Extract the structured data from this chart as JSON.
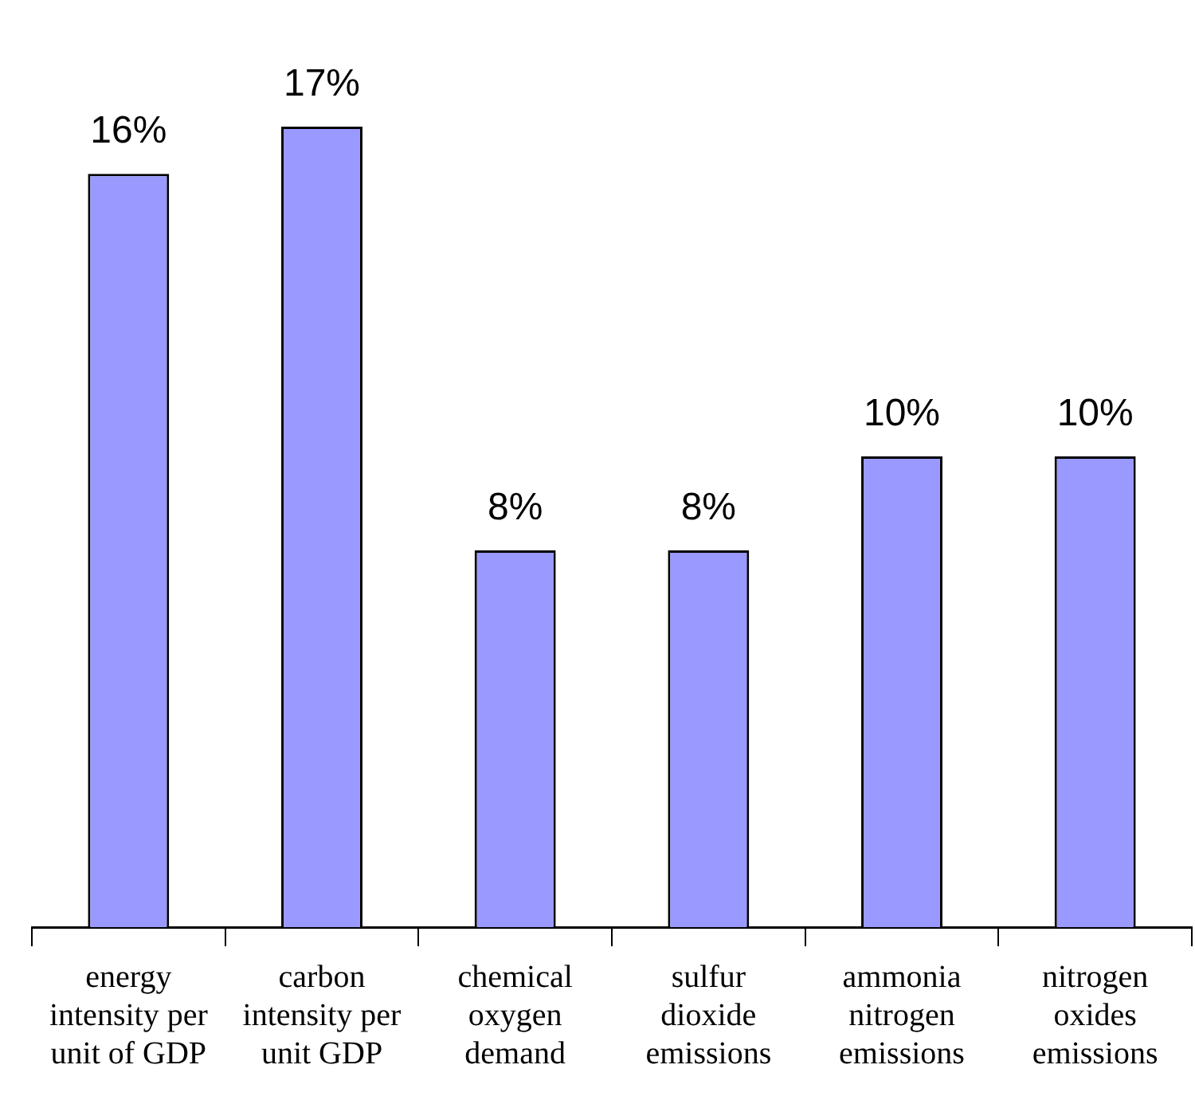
{
  "chart_data": {
    "type": "bar",
    "categories": [
      "energy intensity per unit of GDP",
      "carbon intensity per unit GDP",
      "chemical oxygen demand",
      "sulfur dioxide emissions",
      "ammonia nitrogen emissions",
      "nitrogen oxides emissions"
    ],
    "values": [
      16,
      17,
      8,
      8,
      10,
      10
    ],
    "value_labels": [
      "16%",
      "17%",
      "8%",
      "8%",
      "10%",
      "10%"
    ],
    "color": "#9999ff",
    "tick_labels": "x"
  }
}
